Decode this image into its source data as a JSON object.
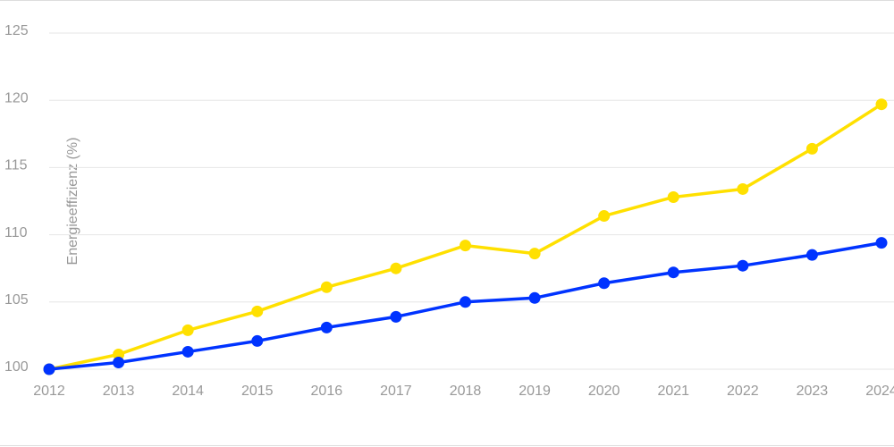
{
  "chart_data": {
    "type": "line",
    "y_label": "Energieeffizienz (%)",
    "categories": [
      "2012",
      "2013",
      "2014",
      "2015",
      "2016",
      "2017",
      "2018",
      "2019",
      "2020",
      "2021",
      "2022",
      "2023",
      "2024"
    ],
    "series": [
      {
        "color": "#ffe000",
        "values": [
          100,
          101.1,
          102.9,
          104.3,
          106.1,
          107.5,
          109.2,
          108.6,
          111.4,
          112.8,
          113.4,
          116.4,
          119.7
        ]
      },
      {
        "color": "#0033ff",
        "values": [
          100,
          100.5,
          101.3,
          102.1,
          103.1,
          103.9,
          105.0,
          105.3,
          106.4,
          107.2,
          107.7,
          108.5,
          109.4
        ]
      }
    ],
    "ylim": [
      100,
      125
    ],
    "yticks": [
      100,
      105,
      110,
      115,
      120,
      125
    ],
    "grid": true
  }
}
